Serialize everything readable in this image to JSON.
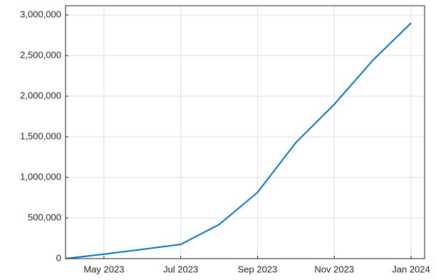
{
  "chart_data": {
    "type": "line",
    "x": [
      "2023-04",
      "2023-05",
      "2023-06",
      "2023-07",
      "2023-08",
      "2023-09",
      "2023-10",
      "2023-11",
      "2023-12",
      "2024-01"
    ],
    "series": [
      {
        "color": "#0072bd",
        "values": [
          0,
          55000,
          114000,
          175000,
          420000,
          815000,
          1430000,
          1900000,
          2440000,
          2900000
        ]
      }
    ],
    "xlim": [
      "2023-04",
      "2024-01"
    ],
    "xticks": [
      {
        "value": "2023-05",
        "label": "May 2023"
      },
      {
        "value": "2023-07",
        "label": "Jul 2023"
      },
      {
        "value": "2023-09",
        "label": "Sep 2023"
      },
      {
        "value": "2023-11",
        "label": "Nov 2023"
      },
      {
        "value": "2024-01",
        "label": "Jan 2024"
      }
    ],
    "ylim": [
      0,
      3000000
    ],
    "yticks": [
      0,
      {
        "value": 500000,
        "label": "500,000"
      },
      {
        "value": 1000000,
        "label": "1,000,000"
      },
      {
        "value": 1500000,
        "label": "1,500,000"
      },
      {
        "value": 2000000,
        "label": "2,000,000"
      },
      {
        "value": 2500000,
        "label": "2,500,000"
      },
      {
        "value": 3000000,
        "label": "3,000,000"
      }
    ],
    "grid": true
  }
}
